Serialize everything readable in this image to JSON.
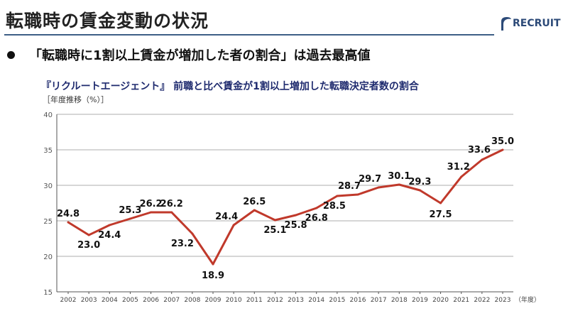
{
  "header": {
    "title": "転職時の賃金変動の状況",
    "logo": "RECRUIT"
  },
  "bullet": "「転職時に1割以上賃金が増加した者の割合」は過去最高値",
  "chart_data": {
    "type": "line",
    "title": "『リクルートエージェント』 前職と比べ賃金が1割以上増加した転職決定者数の割合",
    "subtitle": "［年度推移（%）］",
    "xlabel": "（年度）",
    "ylabel": "",
    "ylim": [
      15,
      40
    ],
    "yticks": [
      15,
      20,
      25,
      30,
      35,
      40
    ],
    "grid": true,
    "categories": [
      "2002",
      "2003",
      "2004",
      "2005",
      "2006",
      "2007",
      "2008",
      "2009",
      "2010",
      "2011",
      "2012",
      "2013",
      "2014",
      "2015",
      "2016",
      "2017",
      "2018",
      "2019",
      "2020",
      "2021",
      "2022",
      "2023"
    ],
    "series": [
      {
        "name": "割合",
        "color": "#c0392b",
        "values": [
          24.8,
          23.0,
          24.4,
          25.3,
          26.2,
          26.2,
          23.2,
          18.9,
          24.4,
          26.5,
          25.1,
          25.8,
          26.8,
          28.5,
          28.7,
          29.7,
          30.1,
          29.3,
          27.5,
          31.2,
          33.6,
          35.0
        ]
      }
    ]
  }
}
